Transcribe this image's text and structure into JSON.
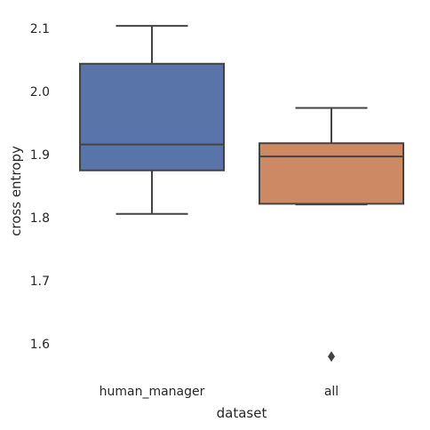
{
  "chart_data": {
    "type": "box",
    "xlabel": "dataset",
    "ylabel": "cross entropy",
    "ylim": [
      1.54,
      2.14
    ],
    "yticks": [
      "1.6",
      "1.7",
      "1.8",
      "1.9",
      "2.0",
      "2.1"
    ],
    "grid": false,
    "boxes": [
      {
        "category": "human_manager",
        "color": "#5874a8",
        "whisker_low": 1.806,
        "q1": 1.875,
        "median": 1.916,
        "q3": 2.044,
        "whisker_high": 2.104,
        "outliers": []
      },
      {
        "category": "all",
        "color": "#cd8963",
        "whisker_low": 1.821,
        "q1": 1.822,
        "median": 1.897,
        "q3": 1.918,
        "whisker_high": 1.974,
        "outliers": [
          1.58
        ]
      }
    ]
  }
}
